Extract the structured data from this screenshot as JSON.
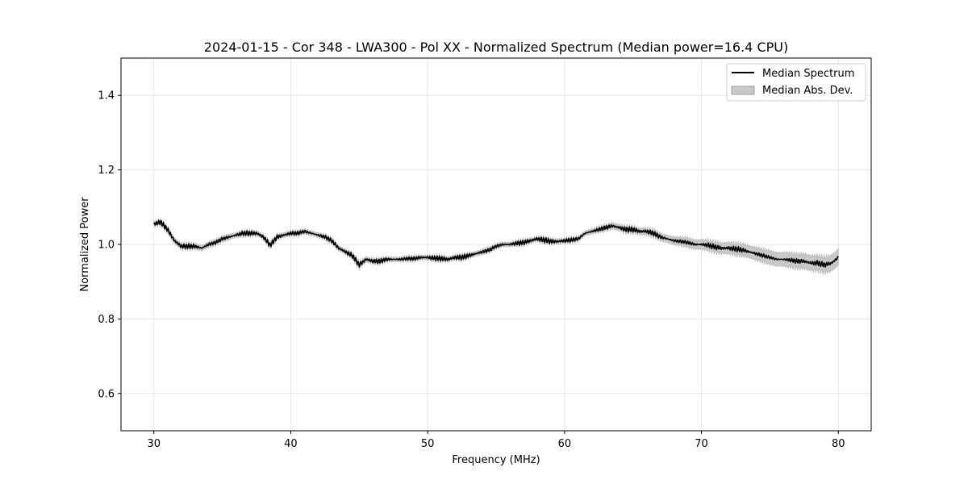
{
  "chart_data": {
    "type": "line",
    "title": "2024-01-15 - Cor 348 - LWA300 - Pol XX - Normalized Spectrum (Median power=16.4 CPU)",
    "xlabel": "Frequency (MHz)",
    "ylabel": "Normalized Power",
    "xlim": [
      27.6,
      82.4
    ],
    "ylim": [
      0.5,
      1.5
    ],
    "xticks": [
      30,
      40,
      50,
      60,
      70,
      80
    ],
    "yticks": [
      0.6,
      0.8,
      1.0,
      1.2,
      1.4
    ],
    "xtick_labels": [
      "30",
      "40",
      "50",
      "60",
      "70",
      "80"
    ],
    "ytick_labels": [
      "0.6",
      "0.8",
      "1.0",
      "1.2",
      "1.4"
    ],
    "grid": true,
    "legend_position": "top-right",
    "series": [
      {
        "name": "Median Spectrum",
        "kind": "line",
        "color": "#000000",
        "x": [
          30.0,
          30.5,
          31.0,
          31.5,
          32.0,
          32.5,
          33.0,
          33.5,
          34.0,
          34.5,
          35.0,
          35.5,
          36.0,
          36.5,
          37.0,
          37.5,
          38.0,
          38.5,
          39.0,
          39.5,
          40.0,
          40.5,
          41.0,
          41.5,
          42.0,
          42.5,
          43.0,
          43.5,
          44.0,
          44.5,
          45.0,
          45.5,
          46.0,
          46.5,
          47.0,
          47.5,
          48.0,
          48.5,
          49.0,
          49.5,
          50.0,
          50.5,
          51.0,
          51.5,
          52.0,
          52.5,
          53.0,
          53.5,
          54.0,
          54.5,
          55.0,
          55.5,
          56.0,
          56.5,
          57.0,
          57.5,
          58.0,
          58.5,
          59.0,
          59.5,
          60.0,
          60.5,
          61.0,
          61.5,
          62.0,
          62.5,
          63.0,
          63.5,
          64.0,
          64.5,
          65.0,
          65.5,
          66.0,
          66.5,
          67.0,
          67.5,
          68.0,
          68.5,
          69.0,
          69.5,
          70.0,
          70.5,
          71.0,
          71.5,
          72.0,
          72.5,
          73.0,
          73.5,
          74.0,
          74.5,
          75.0,
          75.5,
          76.0,
          76.5,
          77.0,
          77.5,
          78.0,
          78.5,
          79.0,
          79.5,
          80.0
        ],
        "y": [
          1.055,
          1.06,
          1.04,
          1.01,
          0.995,
          0.995,
          0.995,
          0.99,
          1.0,
          1.005,
          1.015,
          1.02,
          1.025,
          1.03,
          1.03,
          1.03,
          1.02,
          0.998,
          1.02,
          1.025,
          1.03,
          1.03,
          1.035,
          1.03,
          1.025,
          1.02,
          1.01,
          0.99,
          0.98,
          0.97,
          0.945,
          0.96,
          0.955,
          0.955,
          0.96,
          0.96,
          0.96,
          0.962,
          0.962,
          0.965,
          0.965,
          0.963,
          0.962,
          0.96,
          0.965,
          0.965,
          0.97,
          0.975,
          0.98,
          0.985,
          0.995,
          1.0,
          1.0,
          1.003,
          1.005,
          1.01,
          1.015,
          1.012,
          1.008,
          1.008,
          1.01,
          1.012,
          1.015,
          1.03,
          1.035,
          1.04,
          1.045,
          1.05,
          1.045,
          1.04,
          1.04,
          1.035,
          1.035,
          1.03,
          1.02,
          1.015,
          1.01,
          1.008,
          1.005,
          1.0,
          1.0,
          0.998,
          0.993,
          0.99,
          0.99,
          0.988,
          0.985,
          0.98,
          0.975,
          0.97,
          0.965,
          0.96,
          0.96,
          0.958,
          0.955,
          0.955,
          0.95,
          0.95,
          0.945,
          0.95,
          0.965
        ]
      },
      {
        "name": "Median Abs. Dev.",
        "kind": "band",
        "color": "#c8c8c8",
        "x": [
          30.0,
          30.5,
          31.0,
          31.5,
          32.0,
          32.5,
          33.0,
          33.5,
          34.0,
          34.5,
          35.0,
          35.5,
          36.0,
          36.5,
          37.0,
          37.5,
          38.0,
          38.5,
          39.0,
          39.5,
          40.0,
          40.5,
          41.0,
          41.5,
          42.0,
          42.5,
          43.0,
          43.5,
          44.0,
          44.5,
          45.0,
          45.5,
          46.0,
          46.5,
          47.0,
          47.5,
          48.0,
          48.5,
          49.0,
          49.5,
          50.0,
          50.5,
          51.0,
          51.5,
          52.0,
          52.5,
          53.0,
          53.5,
          54.0,
          54.5,
          55.0,
          55.5,
          56.0,
          56.5,
          57.0,
          57.5,
          58.0,
          58.5,
          59.0,
          59.5,
          60.0,
          60.5,
          61.0,
          61.5,
          62.0,
          62.5,
          63.0,
          63.5,
          64.0,
          64.5,
          65.0,
          65.5,
          66.0,
          66.5,
          67.0,
          67.5,
          68.0,
          68.5,
          69.0,
          69.5,
          70.0,
          70.5,
          71.0,
          71.5,
          72.0,
          72.5,
          73.0,
          73.5,
          74.0,
          74.5,
          75.0,
          75.5,
          76.0,
          76.5,
          77.0,
          77.5,
          78.0,
          78.5,
          79.0,
          79.5,
          80.0
        ],
        "halfwidth": [
          0.006,
          0.006,
          0.006,
          0.007,
          0.007,
          0.007,
          0.007,
          0.007,
          0.007,
          0.007,
          0.007,
          0.007,
          0.006,
          0.006,
          0.006,
          0.006,
          0.006,
          0.006,
          0.006,
          0.006,
          0.006,
          0.006,
          0.006,
          0.006,
          0.006,
          0.006,
          0.006,
          0.006,
          0.006,
          0.006,
          0.008,
          0.007,
          0.006,
          0.006,
          0.006,
          0.006,
          0.006,
          0.006,
          0.006,
          0.006,
          0.006,
          0.006,
          0.006,
          0.006,
          0.006,
          0.006,
          0.006,
          0.006,
          0.006,
          0.006,
          0.006,
          0.006,
          0.006,
          0.006,
          0.006,
          0.006,
          0.006,
          0.006,
          0.006,
          0.006,
          0.006,
          0.006,
          0.006,
          0.006,
          0.007,
          0.007,
          0.007,
          0.008,
          0.008,
          0.008,
          0.008,
          0.008,
          0.009,
          0.009,
          0.009,
          0.01,
          0.01,
          0.011,
          0.012,
          0.012,
          0.013,
          0.013,
          0.014,
          0.014,
          0.015,
          0.015,
          0.016,
          0.016,
          0.017,
          0.017,
          0.018,
          0.018,
          0.019,
          0.019,
          0.019,
          0.02,
          0.02,
          0.02,
          0.021,
          0.021,
          0.021
        ]
      }
    ]
  }
}
